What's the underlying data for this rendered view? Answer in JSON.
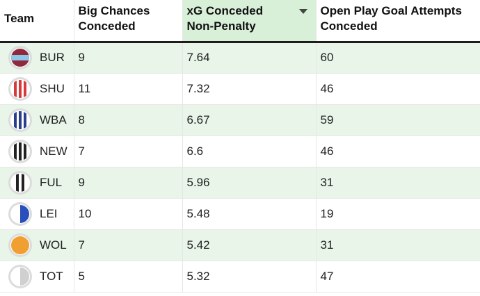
{
  "columns": [
    {
      "label": "Team"
    },
    {
      "label": "Big Chances\nConceded"
    },
    {
      "label": "xG Conceded\nNon-Penalty"
    },
    {
      "label": "Open Play Goal Attempts\nConceded"
    }
  ],
  "sort_column": "xG Conceded Non-Penalty",
  "rows": [
    {
      "team": "BUR",
      "big_chances": "9",
      "xg": "7.64",
      "attempts": "60",
      "badge": "burnley-badge-icon"
    },
    {
      "team": "SHU",
      "big_chances": "11",
      "xg": "7.32",
      "attempts": "46",
      "badge": "sheffield-united-badge-icon"
    },
    {
      "team": "WBA",
      "big_chances": "8",
      "xg": "6.67",
      "attempts": "59",
      "badge": "west-brom-badge-icon"
    },
    {
      "team": "NEW",
      "big_chances": "7",
      "xg": "6.6",
      "attempts": "46",
      "badge": "newcastle-badge-icon"
    },
    {
      "team": "FUL",
      "big_chances": "9",
      "xg": "5.96",
      "attempts": "31",
      "badge": "fulham-badge-icon"
    },
    {
      "team": "LEI",
      "big_chances": "10",
      "xg": "5.48",
      "attempts": "19",
      "badge": "leicester-badge-icon"
    },
    {
      "team": "WOL",
      "big_chances": "7",
      "xg": "5.42",
      "attempts": "31",
      "badge": "wolves-badge-icon"
    },
    {
      "team": "TOT",
      "big_chances": "5",
      "xg": "5.32",
      "attempts": "47",
      "badge": "tottenham-badge-icon"
    }
  ]
}
